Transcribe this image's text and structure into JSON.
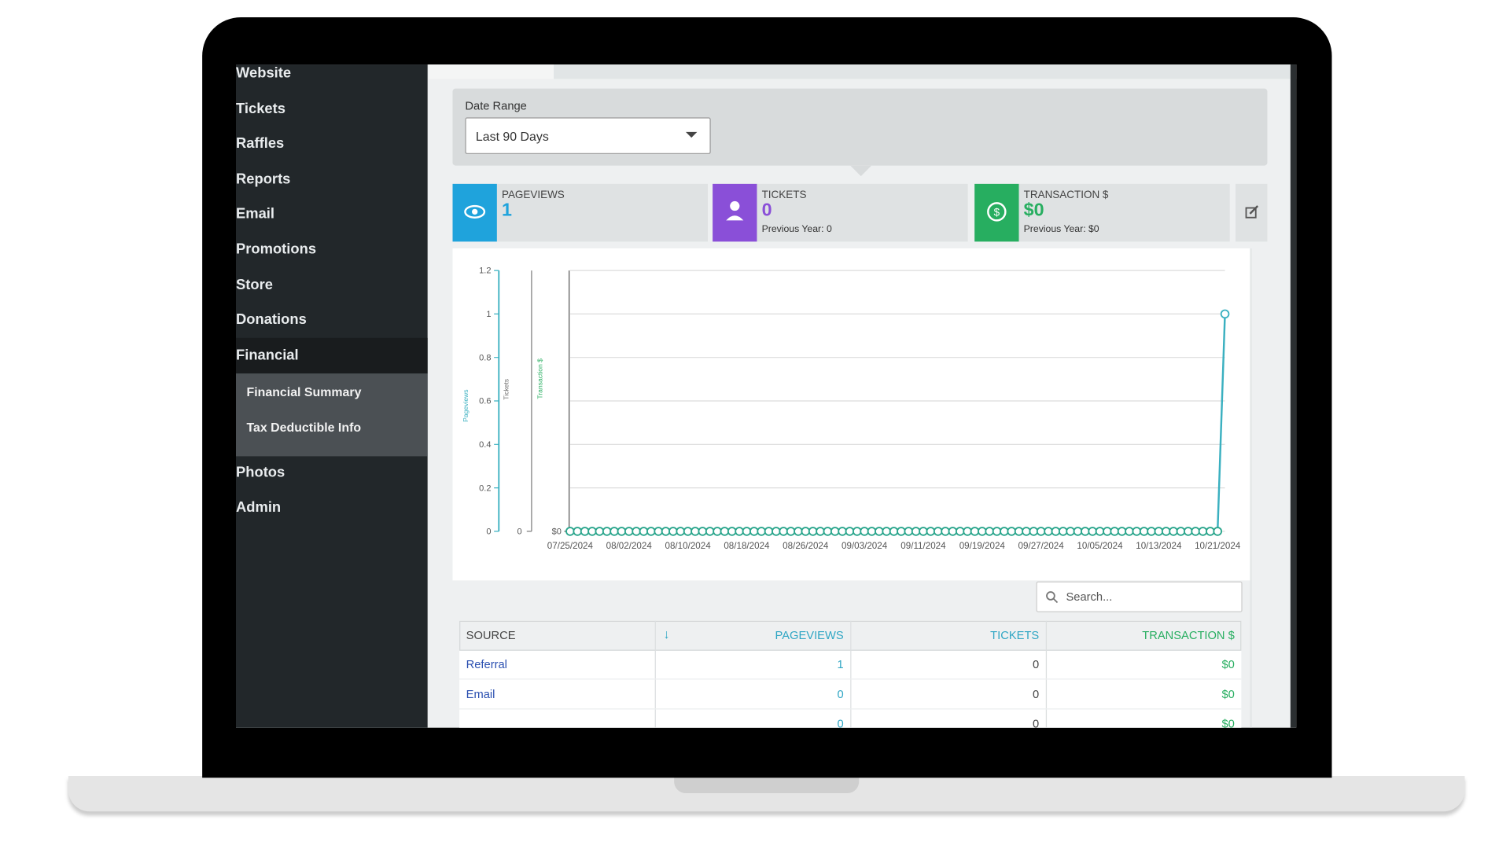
{
  "nav": [
    {
      "label": "Website"
    },
    {
      "label": "Tickets"
    },
    {
      "label": "Raffles"
    },
    {
      "label": "Reports"
    },
    {
      "label": "Email"
    },
    {
      "label": "Promotions"
    },
    {
      "label": "Store"
    },
    {
      "label": "Donations"
    },
    {
      "label": "Financial",
      "children": [
        "Financial Summary",
        "Tax Deductible Info"
      ]
    },
    {
      "label": "Photos"
    },
    {
      "label": "Admin"
    }
  ],
  "date_range": {
    "label": "Date Range",
    "value": "Last 90 Days"
  },
  "stats": [
    {
      "label": "PAGEVIEWS",
      "value": 1,
      "color": "#1fa3dc"
    },
    {
      "label": "TICKETS",
      "value": 0,
      "previous": "Previous Year: 0",
      "color": "#8a4fd8"
    },
    {
      "label": "TRANSACTION $",
      "value": "$0",
      "previous": "Previous Year: $0",
      "color": "#27ae60"
    }
  ],
  "chart_data": {
    "type": "line",
    "xlim": [
      0,
      89
    ],
    "xticks": [
      {
        "value": 0,
        "label": "07/25/2024"
      },
      {
        "value": 8,
        "label": "08/02/2024"
      },
      {
        "value": 16,
        "label": "08/10/2024"
      },
      {
        "value": 24,
        "label": "08/18/2024"
      },
      {
        "value": 32,
        "label": "08/26/2024"
      },
      {
        "value": 40,
        "label": "09/03/2024"
      },
      {
        "value": 48,
        "label": "09/11/2024"
      },
      {
        "value": 56,
        "label": "09/19/2024"
      },
      {
        "value": 64,
        "label": "09/27/2024"
      },
      {
        "value": 72,
        "label": "10/05/2024"
      },
      {
        "value": 80,
        "label": "10/13/2024"
      },
      {
        "value": 88,
        "label": "10/21/2024"
      }
    ],
    "ylim": [
      0,
      1.2
    ],
    "yticks": [
      0,
      0.2,
      0.4,
      0.6,
      0.8,
      1,
      1.2
    ],
    "grid": true,
    "y2label": "Tickets",
    "y2ticks": [
      0
    ],
    "y3label": "Transaction $",
    "y3ticks": [
      {
        "value": 0,
        "label": "$0"
      }
    ],
    "series": [
      {
        "name": "Pageviews",
        "color": "#3ab0c0",
        "values": [
          0,
          0,
          0,
          0,
          0,
          0,
          0,
          0,
          0,
          0,
          0,
          0,
          0,
          0,
          0,
          0,
          0,
          0,
          0,
          0,
          0,
          0,
          0,
          0,
          0,
          0,
          0,
          0,
          0,
          0,
          0,
          0,
          0,
          0,
          0,
          0,
          0,
          0,
          0,
          0,
          0,
          0,
          0,
          0,
          0,
          0,
          0,
          0,
          0,
          0,
          0,
          0,
          0,
          0,
          0,
          0,
          0,
          0,
          0,
          0,
          0,
          0,
          0,
          0,
          0,
          0,
          0,
          0,
          0,
          0,
          0,
          0,
          0,
          0,
          0,
          0,
          0,
          0,
          0,
          0,
          0,
          0,
          0,
          0,
          0,
          0,
          0,
          0,
          0,
          1
        ]
      }
    ]
  },
  "search": {
    "placeholder": "Search..."
  },
  "table": {
    "columns": [
      "SOURCE",
      "PAGEVIEWS",
      "TICKETS",
      "TRANSACTION $"
    ],
    "rows": [
      {
        "source": "Referral",
        "pageviews": 1,
        "tickets": 0,
        "transaction": "$0"
      },
      {
        "source": "Email",
        "pageviews": 0,
        "tickets": 0,
        "transaction": "$0"
      },
      {
        "pageviews": 0,
        "tickets": 0,
        "transaction": "$0"
      }
    ]
  }
}
